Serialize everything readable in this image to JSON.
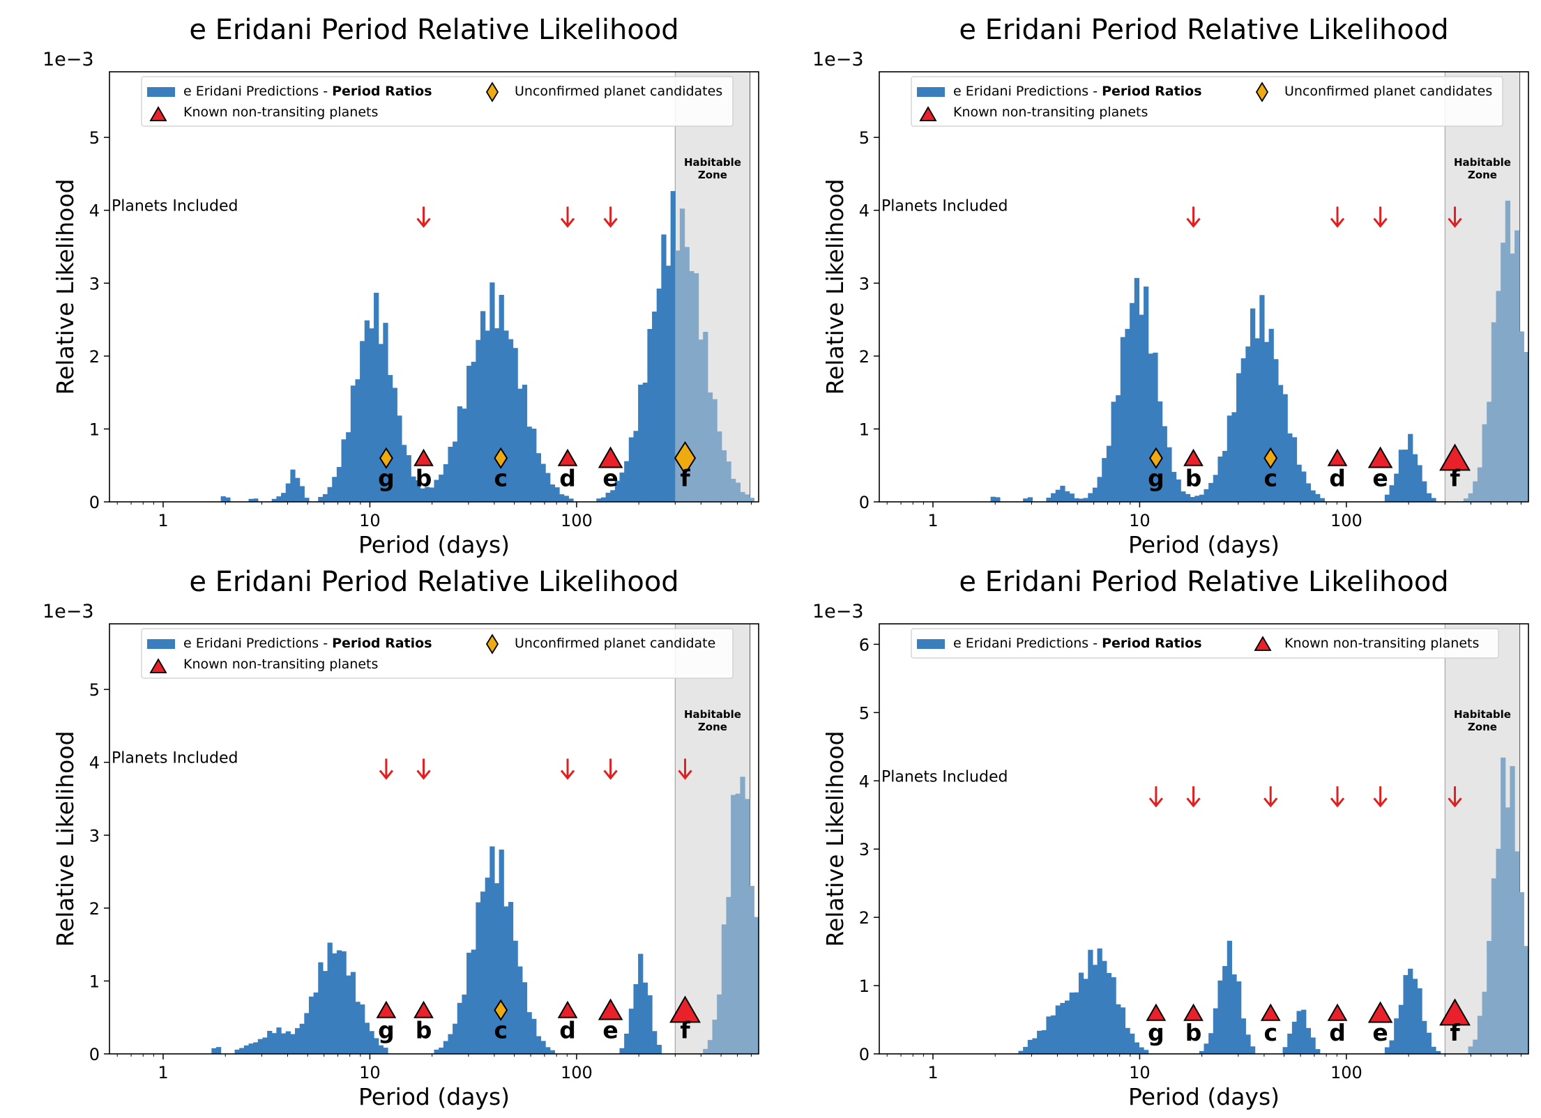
{
  "figure": {
    "bar_color": "#3a7ebe",
    "hz_bar_color": "#84a9c8",
    "hz_shade": "#e6e6e6",
    "arrow_color": "#e02020",
    "triangle_color": "#e8212b",
    "diamond_color": "#eeaa11"
  },
  "chart_data": [
    {
      "type": "bar",
      "title": "e Eridani Period Relative Likelihood",
      "xlabel": "Period (days)",
      "ylabel": "Relative Likelihood",
      "x_scale": "log",
      "xlim": [
        0.55,
        760
      ],
      "ylim": [
        0,
        5.9
      ],
      "y_offset_text": "1e−3",
      "xticks": [
        {
          "v": 1,
          "label": "1"
        },
        {
          "v": 10,
          "label": "10"
        },
        {
          "v": 100,
          "label": "100"
        }
      ],
      "yticks": [
        0,
        1,
        2,
        3,
        4,
        5
      ],
      "legend": {
        "series_label": "e Eridani Predictions - ",
        "series_label_bold": "Period Ratios",
        "triangle_label": "Known non-transiting planets",
        "diamond_label": "Unconfirmed planet candidates"
      },
      "habitable_zone": {
        "label_line1": "Habitable",
        "label_line2": "Zone",
        "range": [
          300,
          690
        ]
      },
      "planets_included_label": "Planets Included",
      "arrows": [
        18.2,
        90.5,
        146
      ],
      "planets": [
        {
          "label": "g",
          "period": 12,
          "kind": "diamond",
          "size": "small"
        },
        {
          "label": "b",
          "period": 18.2,
          "kind": "triangle",
          "size": "small"
        },
        {
          "label": "c",
          "period": 43,
          "kind": "diamond",
          "size": "small"
        },
        {
          "label": "d",
          "period": 90.5,
          "kind": "triangle",
          "size": "small"
        },
        {
          "label": "e",
          "period": 146,
          "kind": "triangle",
          "size": "medium"
        },
        {
          "label": "f",
          "period": 335,
          "kind": "diamond",
          "size": "large"
        }
      ],
      "histogram_peaks": [
        {
          "center": 2.0,
          "sigma": 0.02,
          "height": 0.08
        },
        {
          "center": 2.75,
          "sigma": 0.02,
          "height": 0.05
        },
        {
          "center": 3.6,
          "sigma": 0.02,
          "height": 0.06
        },
        {
          "center": 4.3,
          "sigma": 0.03,
          "height": 0.42
        },
        {
          "center": 10.5,
          "sigma": 0.095,
          "height": 2.6
        },
        {
          "center": 40,
          "sigma": 0.13,
          "height": 2.7
        },
        {
          "center": 305,
          "sigma": 0.125,
          "height": 3.85
        }
      ]
    },
    {
      "type": "bar",
      "title": "e Eridani Period Relative Likelihood",
      "xlabel": "Period (days)",
      "ylabel": "Relative Likelihood",
      "x_scale": "log",
      "xlim": [
        0.55,
        760
      ],
      "ylim": [
        0,
        5.9
      ],
      "y_offset_text": "1e−3",
      "xticks": [
        {
          "v": 1,
          "label": "1"
        },
        {
          "v": 10,
          "label": "10"
        },
        {
          "v": 100,
          "label": "100"
        }
      ],
      "yticks": [
        0,
        1,
        2,
        3,
        4,
        5
      ],
      "legend": {
        "series_label": "e Eridani Predictions - ",
        "series_label_bold": "Period Ratios",
        "triangle_label": "Known non-transiting planets",
        "diamond_label": "Unconfirmed planet candidates"
      },
      "habitable_zone": {
        "label_line1": "Habitable",
        "label_line2": "Zone",
        "range": [
          300,
          690
        ]
      },
      "planets_included_label": "Planets Included",
      "arrows": [
        18.2,
        90.5,
        146,
        335
      ],
      "planets": [
        {
          "label": "g",
          "period": 12,
          "kind": "diamond",
          "size": "small"
        },
        {
          "label": "b",
          "period": 18.2,
          "kind": "triangle",
          "size": "small"
        },
        {
          "label": "c",
          "period": 43,
          "kind": "diamond",
          "size": "small"
        },
        {
          "label": "d",
          "period": 90.5,
          "kind": "triangle",
          "size": "small"
        },
        {
          "label": "e",
          "period": 146,
          "kind": "triangle",
          "size": "medium"
        },
        {
          "label": "f",
          "period": 335,
          "kind": "triangle",
          "size": "large"
        }
      ],
      "histogram_peaks": [
        {
          "center": 2.0,
          "sigma": 0.02,
          "height": 0.08
        },
        {
          "center": 2.9,
          "sigma": 0.03,
          "height": 0.06
        },
        {
          "center": 4.2,
          "sigma": 0.04,
          "height": 0.2
        },
        {
          "center": 9.8,
          "sigma": 0.09,
          "height": 2.9
        },
        {
          "center": 38,
          "sigma": 0.11,
          "height": 2.55
        },
        {
          "center": 200,
          "sigma": 0.05,
          "height": 0.85
        },
        {
          "center": 610,
          "sigma": 0.07,
          "height": 3.9
        }
      ]
    },
    {
      "type": "bar",
      "title": "e Eridani Period Relative Likelihood",
      "xlabel": "Period (days)",
      "ylabel": "Relative Likelihood",
      "x_scale": "log",
      "xlim": [
        0.55,
        760
      ],
      "ylim": [
        0,
        5.9
      ],
      "y_offset_text": "1e−3",
      "xticks": [
        {
          "v": 1,
          "label": "1"
        },
        {
          "v": 10,
          "label": "10"
        },
        {
          "v": 100,
          "label": "100"
        }
      ],
      "yticks": [
        0,
        1,
        2,
        3,
        4,
        5
      ],
      "legend": {
        "series_label": "e Eridani Predictions - ",
        "series_label_bold": "Period Ratios",
        "triangle_label": "Known non-transiting planets",
        "diamond_label": "Unconfirmed planet candidate"
      },
      "habitable_zone": {
        "label_line1": "Habitable",
        "label_line2": "Zone",
        "range": [
          300,
          690
        ]
      },
      "planets_included_label": "Planets Included",
      "arrows": [
        12,
        18.2,
        90.5,
        146,
        335
      ],
      "planets": [
        {
          "label": "g",
          "period": 12,
          "kind": "triangle",
          "size": "small"
        },
        {
          "label": "b",
          "period": 18.2,
          "kind": "triangle",
          "size": "small"
        },
        {
          "label": "c",
          "period": 43,
          "kind": "diamond",
          "size": "small"
        },
        {
          "label": "d",
          "period": 90.5,
          "kind": "triangle",
          "size": "small"
        },
        {
          "label": "e",
          "period": 146,
          "kind": "triangle",
          "size": "medium"
        },
        {
          "label": "f",
          "period": 335,
          "kind": "triangle",
          "size": "large"
        }
      ],
      "histogram_peaks": [
        {
          "center": 1.8,
          "sigma": 0.02,
          "height": 0.1
        },
        {
          "center": 2.6,
          "sigma": 0.05,
          "height": 0.1
        },
        {
          "center": 3.5,
          "sigma": 0.06,
          "height": 0.3
        },
        {
          "center": 6.8,
          "sigma": 0.1,
          "height": 1.45
        },
        {
          "center": 40,
          "sigma": 0.1,
          "height": 2.65
        },
        {
          "center": 205,
          "sigma": 0.04,
          "height": 1.25
        },
        {
          "center": 620,
          "sigma": 0.06,
          "height": 3.85
        }
      ]
    },
    {
      "type": "bar",
      "title": "e Eridani Period Relative Likelihood",
      "xlabel": "Period (days)",
      "ylabel": "Relative Likelihood",
      "x_scale": "log",
      "xlim": [
        0.55,
        760
      ],
      "ylim": [
        0,
        6.3
      ],
      "y_offset_text": "1e−3",
      "xticks": [
        {
          "v": 1,
          "label": "1"
        },
        {
          "v": 10,
          "label": "10"
        },
        {
          "v": 100,
          "label": "100"
        }
      ],
      "yticks": [
        0,
        1,
        2,
        3,
        4,
        5,
        6
      ],
      "legend": {
        "series_label": "e Eridani Predictions - ",
        "series_label_bold": "Period Ratios",
        "triangle_label": "Known non-transiting planets"
      },
      "habitable_zone": {
        "label_line1": "Habitable",
        "label_line2": "Zone",
        "range": [
          300,
          690
        ]
      },
      "planets_included_label": "Planets Included",
      "arrows": [
        12,
        18.2,
        43,
        90.5,
        146,
        335
      ],
      "planets": [
        {
          "label": "g",
          "period": 12,
          "kind": "triangle",
          "size": "small"
        },
        {
          "label": "b",
          "period": 18.2,
          "kind": "triangle",
          "size": "small"
        },
        {
          "label": "c",
          "period": 43,
          "kind": "triangle",
          "size": "small"
        },
        {
          "label": "d",
          "period": 90.5,
          "kind": "triangle",
          "size": "small"
        },
        {
          "label": "e",
          "period": 146,
          "kind": "triangle",
          "size": "medium"
        },
        {
          "label": "f",
          "period": 335,
          "kind": "triangle",
          "size": "large"
        }
      ],
      "histogram_peaks": [
        {
          "center": 3.0,
          "sigma": 0.03,
          "height": 0.1
        },
        {
          "center": 4.0,
          "sigma": 0.07,
          "height": 0.55
        },
        {
          "center": 6.3,
          "sigma": 0.09,
          "height": 1.45
        },
        {
          "center": 27,
          "sigma": 0.05,
          "height": 1.5
        },
        {
          "center": 60,
          "sigma": 0.04,
          "height": 0.65
        },
        {
          "center": 205,
          "sigma": 0.05,
          "height": 1.25
        },
        {
          "center": 600,
          "sigma": 0.065,
          "height": 4.1
        }
      ]
    }
  ]
}
